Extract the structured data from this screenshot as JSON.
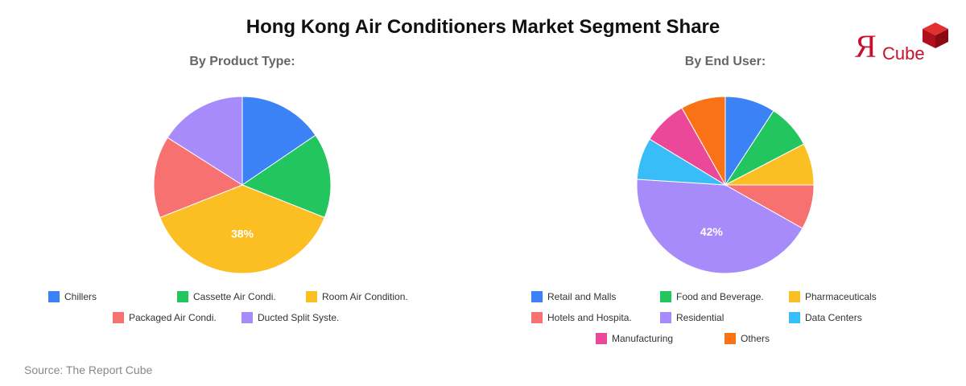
{
  "title": "Hong Kong Air Conditioners Market Segment Share",
  "source": "Source: The Report Cube",
  "logo": {
    "mark": "Я",
    "text": "Cube",
    "color": "#c8102e"
  },
  "chart_data": [
    {
      "type": "pie",
      "title": "By Product Type:",
      "categories": [
        "Chillers",
        "Cassette Air Condi.",
        "Room Air Condition.",
        "Packaged Air Condi.",
        "Ducted Split Syste."
      ],
      "values": [
        15.5,
        15.5,
        38,
        15,
        16
      ],
      "colors": [
        "#3b82f6",
        "#22c55e",
        "#fbbf24",
        "#f87171",
        "#a78bfa"
      ],
      "data_labels": [
        "",
        "",
        "38%",
        "",
        ""
      ],
      "legend": "bottom"
    },
    {
      "type": "pie",
      "title": "By End User:",
      "categories": [
        "Retail and Malls",
        "Food and Beverage.",
        "Pharmaceuticals",
        "Hotels and Hospita.",
        "Residential",
        "Data Centers",
        "Manufacturing",
        "Others"
      ],
      "values": [
        9,
        8,
        7.5,
        8,
        42,
        7.5,
        8,
        8
      ],
      "colors": [
        "#3b82f6",
        "#22c55e",
        "#fbbf24",
        "#f87171",
        "#a78bfa",
        "#38bdf8",
        "#ec4899",
        "#f97316"
      ],
      "data_labels": [
        "",
        "",
        "",
        "",
        "42%",
        "",
        "",
        ""
      ],
      "legend": "bottom"
    }
  ]
}
